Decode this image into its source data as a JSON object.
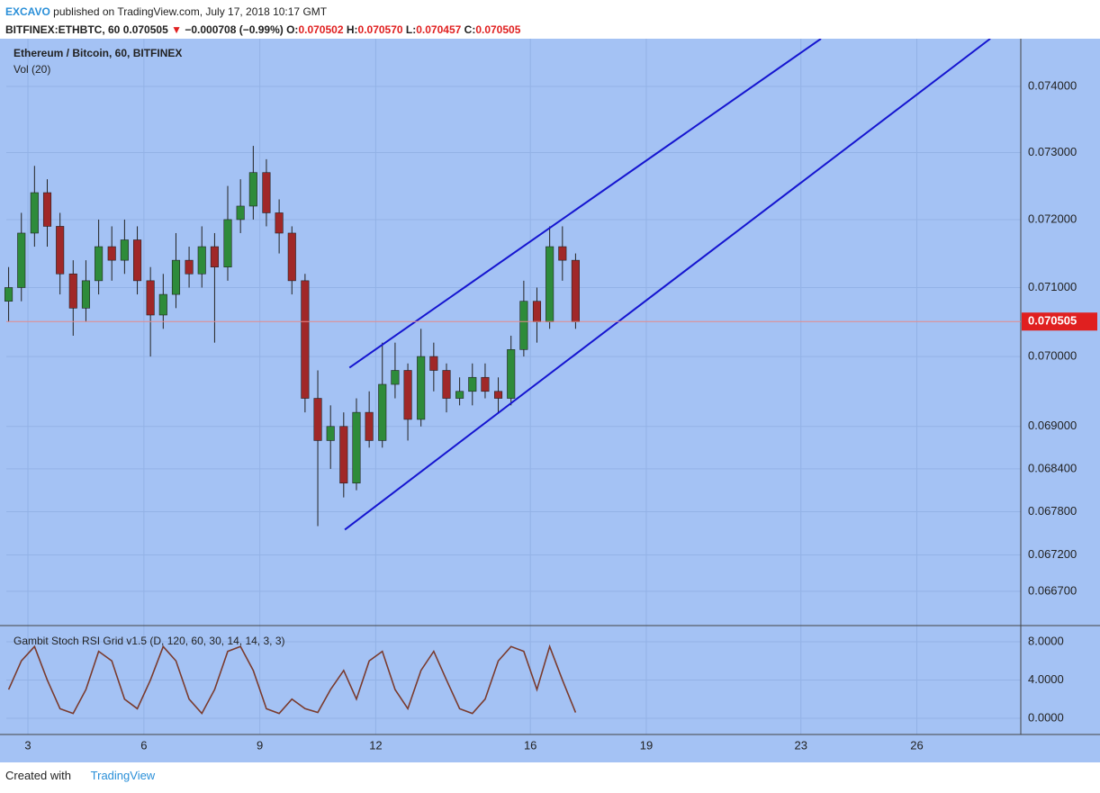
{
  "header": {
    "author": "EXCAVO",
    "published": "published on TradingView.com, July 17, 2018 10:17 GMT",
    "symbol": "BITFINEX:ETHBTC, 60",
    "last": "0.070505",
    "arrow": "▼",
    "change": "−0.000708 (−0.99%)",
    "o_label": "O:",
    "o": "0.070502",
    "h_label": "H:",
    "h": "0.070570",
    "l_label": "L:",
    "l": "0.070457",
    "c_label": "C:",
    "c": "0.070505"
  },
  "chart_data": [
    {
      "type": "candlestick",
      "title": "Ethereum / Bitcoin, 60, BITFINEX",
      "subtitle": "Vol (20)",
      "log_scale": true,
      "up_color": "#2e8b3a",
      "down_color": "#a02828",
      "background": "#a4c2f4",
      "x": [
        2.5,
        2.83,
        3.17,
        3.5,
        3.83,
        4.17,
        4.5,
        4.83,
        5.17,
        5.5,
        5.83,
        6.17,
        6.5,
        6.83,
        7.17,
        7.5,
        7.83,
        8.17,
        8.5,
        8.83,
        9.17,
        9.5,
        9.83,
        10.17,
        10.5,
        10.83,
        11.17,
        11.5,
        11.83,
        12.17,
        12.5,
        12.83,
        13.17,
        13.5,
        13.83,
        14.17,
        14.5,
        14.83,
        15.17,
        15.5,
        15.83,
        16.17,
        16.5,
        16.83,
        17.17
      ],
      "open": [
        0.0708,
        0.071,
        0.0718,
        0.0724,
        0.0719,
        0.0712,
        0.0707,
        0.0711,
        0.0716,
        0.0714,
        0.0717,
        0.0711,
        0.0706,
        0.0709,
        0.0714,
        0.0712,
        0.0716,
        0.0713,
        0.072,
        0.0722,
        0.0727,
        0.0721,
        0.0718,
        0.0711,
        0.0694,
        0.0688,
        0.069,
        0.0682,
        0.0692,
        0.0688,
        0.0696,
        0.0698,
        0.0691,
        0.07,
        0.0698,
        0.0694,
        0.0695,
        0.0697,
        0.0695,
        0.0694,
        0.0701,
        0.0708,
        0.0705,
        0.0716,
        0.0714
      ],
      "high": [
        0.0713,
        0.0721,
        0.0728,
        0.0726,
        0.0721,
        0.0714,
        0.0714,
        0.072,
        0.0719,
        0.072,
        0.0719,
        0.0713,
        0.0712,
        0.0718,
        0.0716,
        0.0719,
        0.0718,
        0.0725,
        0.0726,
        0.0731,
        0.0729,
        0.0723,
        0.0719,
        0.0712,
        0.0698,
        0.0693,
        0.0692,
        0.0694,
        0.0695,
        0.0702,
        0.0702,
        0.0699,
        0.0704,
        0.0702,
        0.0699,
        0.0697,
        0.0699,
        0.0699,
        0.0697,
        0.0703,
        0.0711,
        0.071,
        0.0719,
        0.0719,
        0.0715
      ],
      "low": [
        0.0705,
        0.0708,
        0.0716,
        0.0716,
        0.0709,
        0.0703,
        0.0705,
        0.0709,
        0.0711,
        0.0712,
        0.0709,
        0.07,
        0.0704,
        0.0707,
        0.071,
        0.071,
        0.0702,
        0.0711,
        0.0718,
        0.072,
        0.0719,
        0.0715,
        0.0709,
        0.0692,
        0.0676,
        0.0684,
        0.068,
        0.0681,
        0.0687,
        0.0687,
        0.0694,
        0.0688,
        0.069,
        0.0695,
        0.0692,
        0.0693,
        0.0693,
        0.0694,
        0.0692,
        0.0693,
        0.07,
        0.0702,
        0.0704,
        0.0711,
        0.0704
      ],
      "close": [
        0.071,
        0.0718,
        0.0724,
        0.0719,
        0.0712,
        0.0707,
        0.0711,
        0.0716,
        0.0714,
        0.0717,
        0.0711,
        0.0706,
        0.0709,
        0.0714,
        0.0712,
        0.0716,
        0.0713,
        0.072,
        0.0722,
        0.0727,
        0.0721,
        0.0718,
        0.0711,
        0.0694,
        0.0688,
        0.069,
        0.0682,
        0.0692,
        0.0688,
        0.0696,
        0.0698,
        0.0691,
        0.07,
        0.0698,
        0.0694,
        0.0695,
        0.0697,
        0.0695,
        0.0694,
        0.0701,
        0.0708,
        0.0705,
        0.0716,
        0.0714,
        0.0705
      ],
      "last_price": 0.070505,
      "last_color": "#e02020",
      "trend_lines": [
        {
          "x": [
            11.32,
            23.52
          ],
          "y": [
            0.06984,
            0.07473
          ]
        },
        {
          "x": [
            11.2,
            27.9
          ],
          "y": [
            0.06755,
            0.07473
          ]
        }
      ],
      "trend_color": "#1515d0",
      "xlim": [
        2.44,
        28.69
      ],
      "xticks": [
        3,
        6,
        9,
        12,
        16,
        19,
        23,
        26
      ],
      "ylim": [
        0.06623,
        0.07473
      ],
      "yticks": [
        {
          "value": 0.0667,
          "label": "0.066700"
        },
        {
          "value": 0.0672,
          "label": "0.067200"
        },
        {
          "value": 0.0678,
          "label": "0.067800"
        },
        {
          "value": 0.0684,
          "label": "0.068400"
        },
        {
          "value": 0.069,
          "label": "0.069000"
        },
        {
          "value": 0.07,
          "label": "0.070000"
        },
        {
          "value": 0.071,
          "label": "0.071000"
        },
        {
          "value": 0.072,
          "label": "0.072000"
        },
        {
          "value": 0.073,
          "label": "0.073000"
        },
        {
          "value": 0.074,
          "label": "0.074000"
        }
      ],
      "grid": true
    },
    {
      "type": "line",
      "title": "Gambit Stoch RSI Grid v1.5 (D, 120, 60, 30, 14, 14, 3, 3)",
      "series": [
        {
          "name": "Stoch RSI",
          "color": "#7a3b2e",
          "values": [
            3,
            6,
            7.5,
            4,
            1,
            0.5,
            3,
            7,
            6,
            2,
            1,
            4,
            7.5,
            6,
            2,
            0.5,
            3,
            7,
            7.5,
            5,
            1,
            0.5,
            2,
            1,
            0.6,
            3,
            5,
            2,
            6,
            7,
            3,
            1,
            5,
            7,
            4,
            1,
            0.5,
            2,
            6,
            7.5,
            7,
            3,
            7.5,
            4,
            0.6
          ]
        }
      ],
      "ylim": [
        -1.7,
        9.6
      ],
      "yticks": [
        {
          "value": 0,
          "label": "0.0000"
        },
        {
          "value": 4,
          "label": "4.0000"
        },
        {
          "value": 8,
          "label": "8.0000"
        }
      ],
      "grid": true
    }
  ],
  "footer": {
    "created": "Created with",
    "brand": "TradingView"
  }
}
